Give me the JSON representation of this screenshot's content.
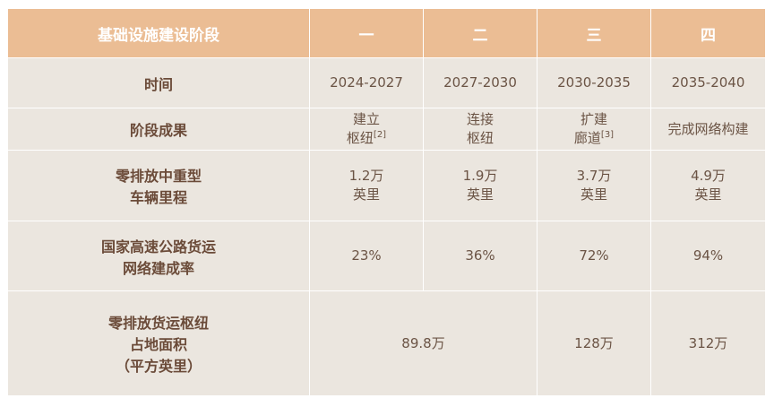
{
  "header": {
    "stage_label": "基础设施建设阶段",
    "stages": [
      "一",
      "二",
      "三",
      "四"
    ]
  },
  "rows": {
    "time": {
      "label": "时间",
      "values": [
        "2024-2027",
        "2027-2030",
        "2030-2035",
        "2035-2040"
      ]
    },
    "outcome": {
      "label": "阶段成果",
      "cells": [
        {
          "line1": "建立",
          "line2": "枢纽",
          "ref": "[2]"
        },
        {
          "line1": "连接",
          "line2": "枢纽",
          "ref": ""
        },
        {
          "line1": "扩建",
          "line2": "廊道",
          "ref": "[3]"
        },
        {
          "line1": "完成网络构建",
          "line2": "",
          "ref": ""
        }
      ]
    },
    "mileage": {
      "label_line1": "零排放中重型",
      "label_line2": "车辆里程",
      "cells": [
        {
          "line1": "1.2万",
          "line2": "英里"
        },
        {
          "line1": "1.9万",
          "line2": "英里"
        },
        {
          "line1": "3.7万",
          "line2": "英里"
        },
        {
          "line1": "4.9万",
          "line2": "英里"
        }
      ]
    },
    "completion": {
      "label_line1": "国家高速公路货运",
      "label_line2": "网络建成率",
      "values": [
        "23%",
        "36%",
        "72%",
        "94%"
      ]
    },
    "hub_area": {
      "label_line1": "零排放货运枢纽",
      "label_line2": "占地面积",
      "label_line3": "（平方英里）",
      "merged_value": "89.8万",
      "values": [
        "128万",
        "312万"
      ]
    }
  },
  "colors": {
    "header_bg": "#ebbd94",
    "header_text": "#ffffff",
    "body_bg": "#ebe6df",
    "label_text": "#6b4b39",
    "value_text": "#6b5445"
  }
}
